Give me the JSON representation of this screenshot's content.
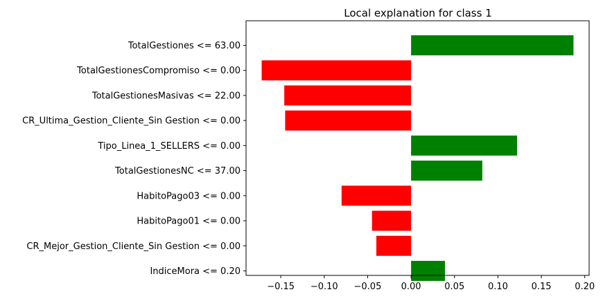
{
  "chart_data": {
    "type": "bar",
    "orientation": "horizontal",
    "title": "Local explanation for class 1",
    "xlabel": "",
    "ylabel": "",
    "categories": [
      "TotalGestiones <= 63.00",
      "TotalGestionesCompromiso <= 0.00",
      "TotalGestionesMasivas <= 22.00",
      "CR_Ultima_Gestion_Cliente_Sin Gestion <= 0.00",
      "Tipo_Linea_1_SELLERS <= 0.00",
      "TotalGestionesNC <= 37.00",
      "HabitoPago03 <= 0.00",
      "HabitoPago01 <= 0.00",
      "CR_Mejor_Gestion_Cliente_Sin Gestion <= 0.00",
      "IndiceMora <= 0.20"
    ],
    "values": [
      0.187,
      -0.172,
      -0.146,
      -0.145,
      0.122,
      0.082,
      -0.08,
      -0.045,
      -0.04,
      0.039
    ],
    "xlim": [
      -0.19,
      0.205
    ],
    "xticks": [
      -0.15,
      -0.1,
      -0.05,
      0.0,
      0.05,
      0.1,
      0.15,
      0.2
    ],
    "xtick_labels": [
      "−0.15",
      "−0.10",
      "−0.05",
      "0.00",
      "0.05",
      "0.10",
      "0.15",
      "0.20"
    ],
    "colors": {
      "positive": "#008000",
      "negative": "#ff0000"
    },
    "grid": false,
    "legend": "none"
  }
}
